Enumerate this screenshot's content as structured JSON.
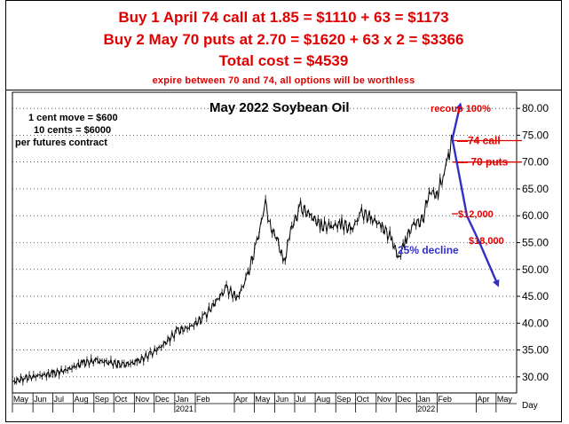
{
  "header": {
    "line1": "Buy 1 April 74 call at 1.85 = $1110 + 63 = $1173",
    "line2": "Buy 2 May 70 puts at 2.70 = $1620 + 63 x 2 = $3366",
    "line3": "Total cost = $4539",
    "line4": "expire between 70 and 74, all options will be worthless"
  },
  "notes": {
    "n1": "1 cent move = $600",
    "n2": "10 cents = $6000",
    "n3": "per futures contract"
  },
  "colors": {
    "red": "#e00000",
    "blue": "#3030c8",
    "price": "#000000"
  },
  "chart_data": {
    "type": "line",
    "title": "May 2022 Soybean Oil",
    "ylabel": "",
    "xlabel": "Day",
    "ylim": [
      27,
      83
    ],
    "yticks": [
      "30.00",
      "35.00",
      "40.00",
      "45.00",
      "50.00",
      "55.00",
      "60.00",
      "65.00",
      "70.00",
      "75.00",
      "80.00"
    ],
    "ytick_values": [
      30,
      35,
      40,
      45,
      50,
      55,
      60,
      65,
      70,
      75,
      80
    ],
    "months": [
      "May",
      "Jun",
      "Jul",
      "Aug",
      "Sep",
      "Oct",
      "Nov",
      "Dec",
      "Jan",
      "Feb",
      "Apr",
      "May",
      "Jun",
      "Jul",
      "Aug",
      "Sep",
      "Oct",
      "Nov",
      "Dec",
      "Jan",
      "Feb",
      "Apr",
      "May"
    ],
    "years": [
      "2021",
      "2022"
    ],
    "series": [
      {
        "values": [
          [
            "2020-05-01",
            29.0
          ],
          [
            "2020-05-20",
            29.8
          ],
          [
            "2020-06-10",
            30.2
          ],
          [
            "2020-07-01",
            30.6
          ],
          [
            "2020-07-25",
            31.4
          ],
          [
            "2020-08-15",
            32.6
          ],
          [
            "2020-09-05",
            33.0
          ],
          [
            "2020-09-25",
            32.7
          ],
          [
            "2020-10-15",
            32.2
          ],
          [
            "2020-11-05",
            32.8
          ],
          [
            "2020-11-25",
            34.2
          ],
          [
            "2020-12-15",
            36.0
          ],
          [
            "2021-01-05",
            38.5
          ],
          [
            "2021-01-25",
            39.3
          ],
          [
            "2021-02-15",
            41.2
          ],
          [
            "2021-03-05",
            44.2
          ],
          [
            "2021-03-20",
            46.5
          ],
          [
            "2021-04-05",
            44.6
          ],
          [
            "2021-04-20",
            48.5
          ],
          [
            "2021-05-05",
            55.0
          ],
          [
            "2021-05-18",
            62.5
          ],
          [
            "2021-05-25",
            58.0
          ],
          [
            "2021-06-05",
            55.5
          ],
          [
            "2021-06-15",
            51.0
          ],
          [
            "2021-06-25",
            57.5
          ],
          [
            "2021-07-10",
            61.5
          ],
          [
            "2021-07-25",
            60.0
          ],
          [
            "2021-08-10",
            58.2
          ],
          [
            "2021-08-25",
            58.0
          ],
          [
            "2021-09-10",
            58.5
          ],
          [
            "2021-09-25",
            57.5
          ],
          [
            "2021-10-10",
            60.5
          ],
          [
            "2021-10-25",
            59.5
          ],
          [
            "2021-11-10",
            58.0
          ],
          [
            "2021-11-25",
            55.5
          ],
          [
            "2021-12-05",
            52.0
          ],
          [
            "2021-12-15",
            55.5
          ],
          [
            "2021-12-28",
            58.5
          ],
          [
            "2022-01-10",
            59.0
          ],
          [
            "2022-01-20",
            64.5
          ],
          [
            "2022-02-01",
            64.0
          ],
          [
            "2022-02-10",
            67.5
          ],
          [
            "2022-02-18",
            71.0
          ],
          [
            "2022-02-24",
            74.3
          ]
        ]
      }
    ],
    "levels": [
      {
        "label": "74 call",
        "value": 74
      },
      {
        "label": "70 puts",
        "value": 70
      }
    ],
    "annotations": {
      "recoup": "recoup 100%",
      "loss1": "$12,000",
      "loss2": "$18,000",
      "decline": "25% decline"
    },
    "projection_up": [
      [
        "2022-02-24",
        74.3
      ],
      [
        "2022-03-08",
        80.8
      ]
    ],
    "projection_down": [
      [
        "2022-02-24",
        74.3
      ],
      [
        "2022-03-18",
        60.0
      ],
      [
        "2022-04-06",
        55.0
      ],
      [
        "2022-05-04",
        47.0
      ]
    ]
  }
}
